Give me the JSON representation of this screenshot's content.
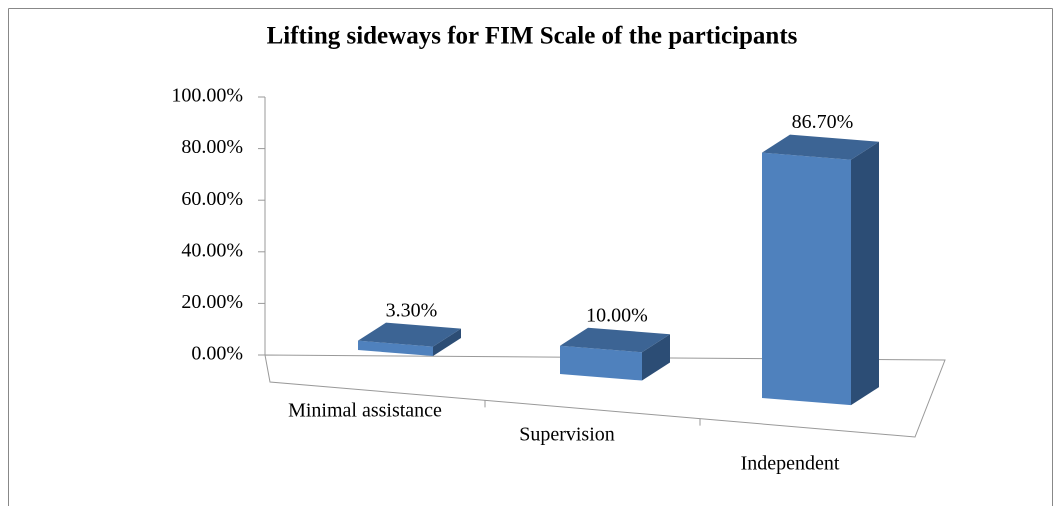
{
  "chart_data": {
    "type": "bar3d",
    "title": "Lifting sideways for FIM Scale of the participants",
    "categories": [
      "Minimal assistance",
      "Supervision",
      "Independent"
    ],
    "values": [
      3.3,
      10,
      86.7
    ],
    "value_labels": [
      "3.30%",
      "10.00%",
      "86.70%"
    ],
    "color": "#4f81bd",
    "ylim": [
      0,
      100
    ],
    "yticks": [
      {
        "value": 0,
        "label": "0.00%"
      },
      {
        "value": 20,
        "label": "20.00%"
      },
      {
        "value": 40,
        "label": "40.00%"
      },
      {
        "value": 60,
        "label": "60.00%"
      },
      {
        "value": 80,
        "label": "80.00%"
      },
      {
        "value": 100,
        "label": "100.00%"
      }
    ]
  }
}
